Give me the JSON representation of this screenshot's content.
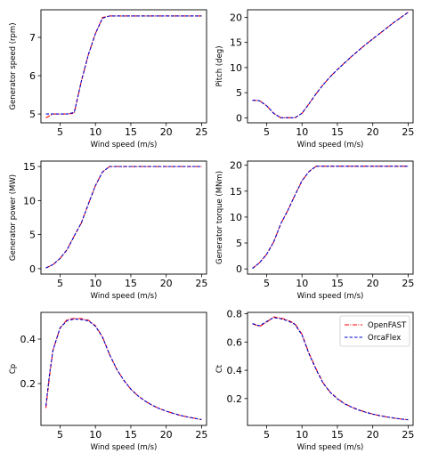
{
  "colors": {
    "OpenFAST": "#ff0000",
    "OrcaFlex": "#0000cc"
  },
  "legend": {
    "placement": "top-right",
    "panel": 5,
    "entries": [
      "OpenFAST",
      "OrcaFlex"
    ]
  },
  "chart_data": [
    {
      "type": "line",
      "xlabel": "Wind speed (m/s)",
      "ylabel": "Generator speed (rpm)",
      "xlim": [
        2.3,
        25.7
      ],
      "ylim": [
        4.77,
        7.72
      ],
      "xticks": [
        5,
        10,
        15,
        20,
        25
      ],
      "yticks": [
        5,
        6,
        7
      ],
      "x": [
        3,
        4,
        5,
        6,
        7,
        8,
        9,
        10,
        11,
        12,
        13,
        14,
        15,
        16,
        17,
        18,
        19,
        20,
        21,
        22,
        23,
        24,
        25
      ],
      "series": [
        {
          "name": "OpenFAST",
          "values": [
            4.9,
            5.0,
            5.0,
            5.0,
            5.02,
            5.85,
            6.55,
            7.1,
            7.52,
            7.56,
            7.56,
            7.56,
            7.56,
            7.56,
            7.56,
            7.56,
            7.56,
            7.56,
            7.56,
            7.56,
            7.56,
            7.56,
            7.56
          ]
        },
        {
          "name": "OrcaFlex",
          "values": [
            5.0,
            5.0,
            5.0,
            5.0,
            5.04,
            5.85,
            6.55,
            7.1,
            7.5,
            7.56,
            7.56,
            7.56,
            7.56,
            7.56,
            7.56,
            7.56,
            7.56,
            7.56,
            7.56,
            7.56,
            7.56,
            7.56,
            7.56
          ]
        }
      ]
    },
    {
      "type": "line",
      "xlabel": "Wind speed (m/s)",
      "ylabel": "Pitch (deg)",
      "xlim": [
        2.3,
        25.7
      ],
      "ylim": [
        -1.0,
        21.5
      ],
      "xticks": [
        5,
        10,
        15,
        20,
        25
      ],
      "yticks": [
        0,
        5,
        10,
        15,
        20
      ],
      "x": [
        3,
        4,
        5,
        6,
        7,
        8,
        9,
        10,
        11,
        12,
        13,
        14,
        15,
        16,
        17,
        18,
        19,
        20,
        21,
        22,
        23,
        24,
        25
      ],
      "series": [
        {
          "name": "OpenFAST",
          "values": [
            3.5,
            3.4,
            2.4,
            0.9,
            0.0,
            0.0,
            0.0,
            0.9,
            2.8,
            4.8,
            6.6,
            8.2,
            9.6,
            10.9,
            12.2,
            13.4,
            14.6,
            15.7,
            16.8,
            17.9,
            19.0,
            20.0,
            21.0
          ]
        },
        {
          "name": "OrcaFlex",
          "values": [
            3.5,
            3.4,
            2.4,
            0.9,
            0.0,
            0.0,
            0.0,
            0.9,
            2.8,
            4.8,
            6.6,
            8.2,
            9.6,
            10.9,
            12.2,
            13.4,
            14.6,
            15.7,
            16.8,
            17.9,
            19.0,
            20.0,
            21.0
          ]
        }
      ]
    },
    {
      "type": "line",
      "xlabel": "Wind speed (m/s)",
      "ylabel": "Generator power (MW)",
      "xlim": [
        2.3,
        25.7
      ],
      "ylim": [
        -0.8,
        15.8
      ],
      "xticks": [
        5,
        10,
        15,
        20,
        25
      ],
      "yticks": [
        0,
        5,
        10,
        15
      ],
      "x": [
        3,
        4,
        5,
        6,
        7,
        8,
        9,
        10,
        11,
        12,
        13,
        14,
        15,
        16,
        17,
        18,
        19,
        20,
        21,
        22,
        23,
        24,
        25
      ],
      "series": [
        {
          "name": "OpenFAST",
          "values": [
            0.1,
            0.6,
            1.5,
            2.8,
            4.8,
            6.7,
            9.5,
            12.2,
            14.2,
            15.0,
            15.0,
            15.0,
            15.0,
            15.0,
            15.0,
            15.0,
            15.0,
            15.0,
            15.0,
            15.0,
            15.0,
            15.0,
            15.0
          ]
        },
        {
          "name": "OrcaFlex",
          "values": [
            0.1,
            0.6,
            1.5,
            2.8,
            4.8,
            6.7,
            9.5,
            12.2,
            14.2,
            15.0,
            15.0,
            15.0,
            15.0,
            15.0,
            15.0,
            15.0,
            15.0,
            15.0,
            15.0,
            15.0,
            15.0,
            15.0,
            15.0
          ]
        }
      ]
    },
    {
      "type": "line",
      "xlabel": "Wind speed (m/s)",
      "ylabel": "Generator torque (MNm)",
      "xlim": [
        2.3,
        25.7
      ],
      "ylim": [
        -1.0,
        20.8
      ],
      "xticks": [
        5,
        10,
        15,
        20,
        25
      ],
      "yticks": [
        0,
        5,
        10,
        15,
        20
      ],
      "x": [
        3,
        4,
        5,
        6,
        7,
        8,
        9,
        10,
        11,
        12,
        13,
        14,
        15,
        16,
        17,
        18,
        19,
        20,
        21,
        22,
        23,
        24,
        25
      ],
      "series": [
        {
          "name": "OpenFAST",
          "values": [
            0.1,
            1.2,
            2.8,
            5.2,
            8.7,
            11.3,
            14.2,
            17.0,
            18.8,
            19.8,
            19.8,
            19.8,
            19.8,
            19.8,
            19.8,
            19.8,
            19.8,
            19.8,
            19.8,
            19.8,
            19.8,
            19.8,
            19.8
          ]
        },
        {
          "name": "OrcaFlex",
          "values": [
            0.1,
            1.2,
            2.8,
            5.2,
            8.7,
            11.3,
            14.2,
            17.0,
            18.8,
            19.8,
            19.8,
            19.8,
            19.8,
            19.8,
            19.8,
            19.8,
            19.8,
            19.8,
            19.8,
            19.8,
            19.8,
            19.8,
            19.8
          ]
        }
      ]
    },
    {
      "type": "line",
      "xlabel": "Wind speed (m/s)",
      "ylabel": "Cp",
      "xlim": [
        2.3,
        25.7
      ],
      "ylim": [
        0.012,
        0.52
      ],
      "xticks": [
        5,
        10,
        15,
        20,
        25
      ],
      "yticks": [
        0.2,
        0.4
      ],
      "x": [
        3,
        3.5,
        4,
        5,
        6,
        7,
        8,
        9,
        10,
        11,
        12,
        13,
        14,
        15,
        16,
        17,
        18,
        19,
        20,
        21,
        22,
        23,
        24,
        25
      ],
      "series": [
        {
          "name": "OpenFAST",
          "values": [
            0.09,
            0.23,
            0.35,
            0.45,
            0.488,
            0.493,
            0.492,
            0.485,
            0.46,
            0.41,
            0.33,
            0.265,
            0.215,
            0.175,
            0.145,
            0.122,
            0.103,
            0.088,
            0.076,
            0.066,
            0.057,
            0.05,
            0.044,
            0.038
          ]
        },
        {
          "name": "OrcaFlex",
          "values": [
            0.1,
            0.24,
            0.35,
            0.45,
            0.483,
            0.49,
            0.488,
            0.482,
            0.458,
            0.408,
            0.33,
            0.265,
            0.215,
            0.175,
            0.145,
            0.122,
            0.103,
            0.088,
            0.076,
            0.066,
            0.057,
            0.05,
            0.044,
            0.038
          ]
        }
      ]
    },
    {
      "type": "line",
      "xlabel": "Wind speed (m/s)",
      "ylabel": "Ct",
      "xlim": [
        2.3,
        25.7
      ],
      "ylim": [
        0.01,
        0.81
      ],
      "xticks": [
        5,
        10,
        15,
        20,
        25
      ],
      "yticks": [
        0.2,
        0.4,
        0.6,
        0.8
      ],
      "x": [
        3,
        4,
        5,
        6,
        7,
        8,
        9,
        10,
        11,
        12,
        13,
        14,
        15,
        16,
        17,
        18,
        19,
        20,
        21,
        22,
        23,
        24,
        25
      ],
      "series": [
        {
          "name": "OpenFAST",
          "values": [
            0.73,
            0.71,
            0.74,
            0.778,
            0.77,
            0.755,
            0.73,
            0.655,
            0.52,
            0.41,
            0.31,
            0.245,
            0.2,
            0.165,
            0.14,
            0.12,
            0.104,
            0.09,
            0.079,
            0.07,
            0.062,
            0.055,
            0.05
          ]
        },
        {
          "name": "OrcaFlex",
          "values": [
            0.73,
            0.715,
            0.745,
            0.773,
            0.765,
            0.75,
            0.725,
            0.65,
            0.515,
            0.405,
            0.308,
            0.243,
            0.198,
            0.163,
            0.139,
            0.119,
            0.103,
            0.09,
            0.079,
            0.07,
            0.062,
            0.055,
            0.05
          ]
        }
      ]
    }
  ]
}
